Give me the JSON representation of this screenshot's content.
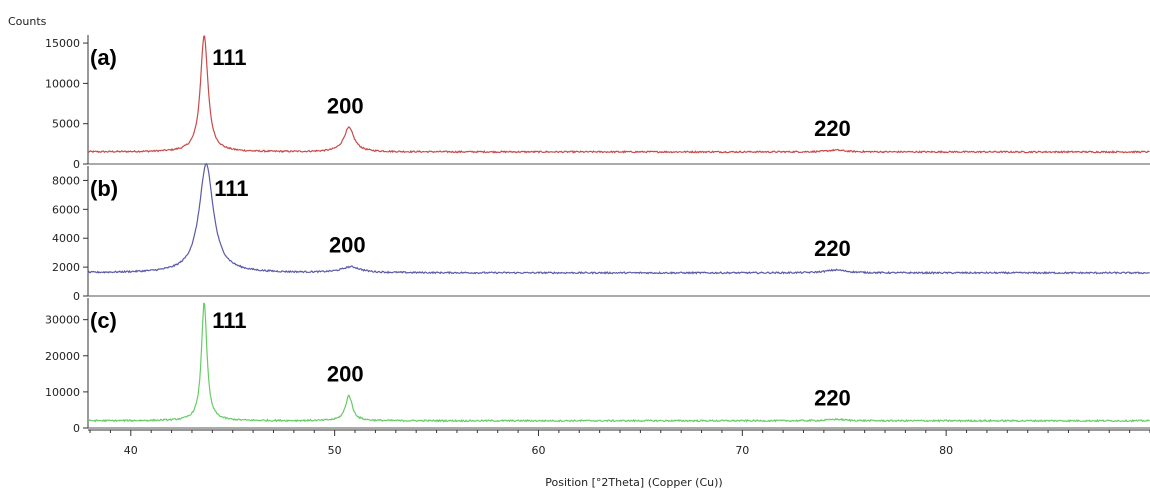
{
  "chart_data": {
    "type": "line",
    "ylabel": "Counts",
    "xlabel": "Position [°2Theta] (Copper (Cu))",
    "xlim": [
      37.9,
      90.0
    ],
    "x_ticks": [
      40,
      50,
      60,
      70,
      80
    ],
    "grid": false,
    "legend": "none",
    "panels": [
      {
        "label": "(a)",
        "color": "#c84a4a",
        "ylim": [
          0,
          16000
        ],
        "y_ticks": [
          0,
          5000,
          10000,
          15000
        ],
        "baseline": 1500,
        "peaks": [
          {
            "x": 43.6,
            "height": 14500,
            "width": 0.22,
            "label": "111"
          },
          {
            "x": 50.7,
            "height": 3000,
            "width": 0.3,
            "label": "200"
          },
          {
            "x": 74.6,
            "height": 220,
            "width": 0.5,
            "label": "220"
          }
        ]
      },
      {
        "label": "(b)",
        "color": "#5a5aa8",
        "ylim": [
          0,
          9000
        ],
        "y_ticks": [
          0,
          2000,
          4000,
          6000,
          8000
        ],
        "baseline": 1600,
        "peaks": [
          {
            "x": 43.7,
            "height": 7500,
            "width": 0.42,
            "label": "111"
          },
          {
            "x": 50.8,
            "height": 400,
            "width": 0.55,
            "label": "200"
          },
          {
            "x": 74.6,
            "height": 200,
            "width": 0.6,
            "label": "220"
          }
        ]
      },
      {
        "label": "(c)",
        "color": "#66cc66",
        "ylim": [
          0,
          36000
        ],
        "y_ticks": [
          0,
          10000,
          20000,
          30000
        ],
        "baseline": 2000,
        "peaks": [
          {
            "x": 43.6,
            "height": 33000,
            "width": 0.16,
            "label": "111"
          },
          {
            "x": 50.7,
            "height": 7000,
            "width": 0.2,
            "label": "200"
          },
          {
            "x": 74.6,
            "height": 400,
            "width": 0.5,
            "label": "220"
          }
        ]
      }
    ]
  }
}
